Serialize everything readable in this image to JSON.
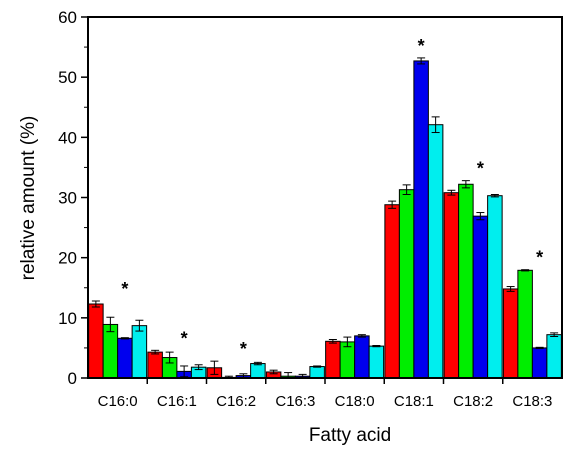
{
  "chart_data": {
    "type": "bar",
    "title": "",
    "xlabel": "Fatty acid",
    "ylabel": "relative amount (%)",
    "ylim": [
      0,
      60
    ],
    "yticks": [
      0,
      10,
      20,
      30,
      40,
      50,
      60
    ],
    "grid": false,
    "legend": "none",
    "categories": [
      "C16:0",
      "C16:1",
      "C16:2",
      "C16:3",
      "C18:0",
      "C18:1",
      "C18:2",
      "C18:3"
    ],
    "series": [
      {
        "color": "#ff0000",
        "values": [
          12.3,
          4.3,
          1.7,
          1.0,
          6.1,
          28.8,
          30.8,
          14.8
        ],
        "errors": [
          0.5,
          0.3,
          1.1,
          0.3,
          0.3,
          0.6,
          0.4,
          0.4
        ]
      },
      {
        "color": "#00ee00",
        "values": [
          8.9,
          3.4,
          0.1,
          0.3,
          6.0,
          31.3,
          32.2,
          17.9
        ],
        "errors": [
          1.2,
          0.9,
          0.2,
          0.6,
          0.8,
          0.8,
          0.6,
          0.1
        ]
      },
      {
        "color": "#0000ee",
        "values": [
          6.6,
          1.1,
          0.4,
          0.3,
          7.0,
          52.7,
          26.9,
          5.0
        ],
        "errors": [
          0.1,
          0.9,
          0.3,
          0.3,
          0.2,
          0.5,
          0.6,
          0.1
        ]
      },
      {
        "color": "#00eeee",
        "values": [
          8.7,
          1.8,
          2.4,
          1.9,
          5.3,
          42.1,
          30.3,
          7.2
        ],
        "errors": [
          0.9,
          0.4,
          0.2,
          0.1,
          0.1,
          1.3,
          0.2,
          0.3
        ]
      }
    ],
    "significance": [
      "*",
      "*",
      "*",
      "",
      "",
      "*",
      "*",
      "*"
    ]
  }
}
